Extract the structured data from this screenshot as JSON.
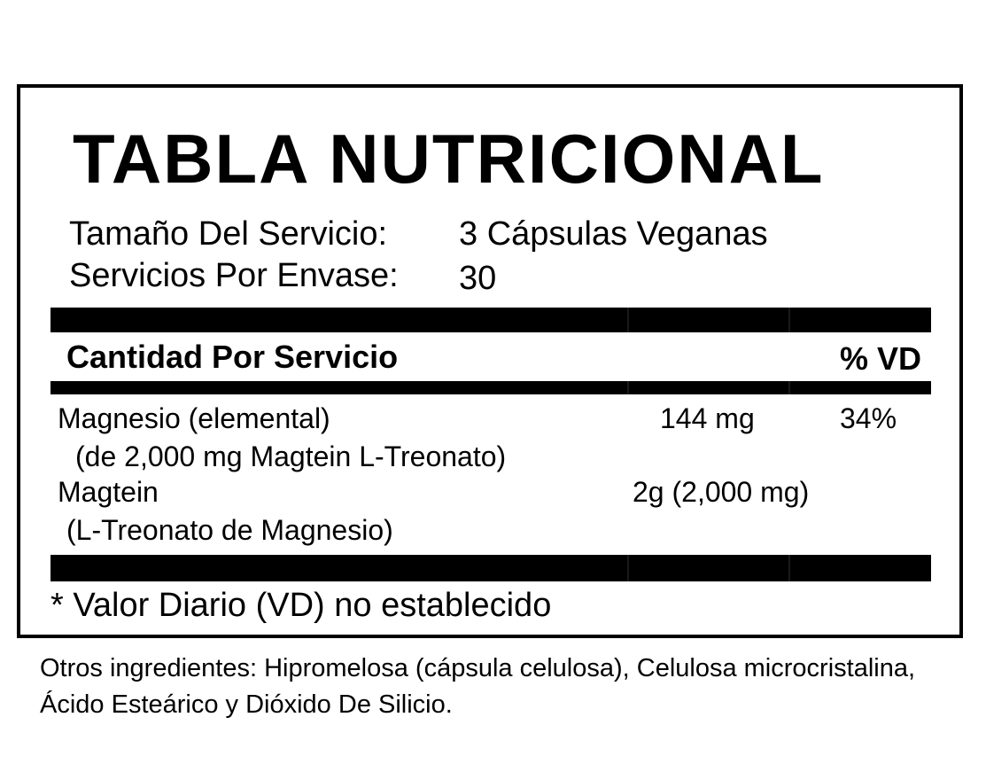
{
  "title": "TABLA NUTRICIONAL",
  "serving": {
    "size_label": "Tamaño Del Servicio:",
    "size_value": "3 Cápsulas Veganas",
    "per_container_label": "Servicios Por Envase:",
    "per_container_value": "30"
  },
  "table": {
    "header_amount": "Cantidad Por Servicio",
    "header_dv": "% VD",
    "rows": [
      {
        "name": "Magnesio (elemental)",
        "sub": "(de 2,000 mg Magtein L-Treonato)",
        "amount": "144 mg",
        "dv": "34%"
      },
      {
        "name": "Magtein",
        "sub": "(L-Treonato de Magnesio)",
        "amount": "2g (2,000 mg)",
        "dv": ""
      }
    ]
  },
  "footnote": "* Valor Diario (VD) no establecido",
  "other_ingredients": "Otros ingredientes: Hipromelosa (cápsula celulosa), Celulosa microcristalina, Ácido Esteárico y Dióxido De Silicio."
}
